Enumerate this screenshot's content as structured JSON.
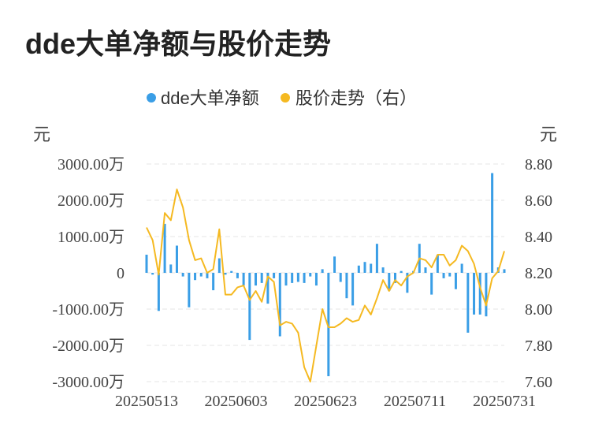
{
  "title": "dde大单净额与股价走势",
  "legend": {
    "bar_label": "dde大单净额",
    "line_label": "股价走势（右）"
  },
  "colors": {
    "bar": "#3a9ee6",
    "line": "#f5b921",
    "title": "#222222"
  },
  "chart_data": {
    "type": "bar",
    "y_left_unit": "元",
    "y_right_unit": "元",
    "y_left_ticks": [
      "3000.00万",
      "2000.00万",
      "1000.00万",
      "0",
      "-1000.00万",
      "-2000.00万",
      "-3000.00万"
    ],
    "y_right_ticks": [
      "8.80",
      "8.60",
      "8.40",
      "8.20",
      "8.00",
      "7.80",
      "7.60"
    ],
    "ylim_left": [
      -3000,
      3000
    ],
    "ylim_right": [
      7.6,
      8.8
    ],
    "x_tick_labels": [
      "20250513",
      "20250603",
      "20250623",
      "20250711",
      "20250731"
    ],
    "grid": true,
    "legend_position": "top-center",
    "series": [
      {
        "name": "dde大单净额",
        "type": "bar",
        "unit": "万元",
        "values": [
          500,
          -50,
          -1050,
          1350,
          230,
          750,
          -100,
          -950,
          -200,
          -100,
          -150,
          -480,
          400,
          -50,
          50,
          -150,
          -350,
          -1850,
          -350,
          -280,
          -850,
          -150,
          -1750,
          -350,
          -280,
          -250,
          -280,
          -100,
          -350,
          100,
          -2850,
          450,
          -250,
          -700,
          -900,
          200,
          300,
          250,
          800,
          150,
          -500,
          -280,
          50,
          -550,
          50,
          800,
          150,
          -600,
          500,
          -150,
          -100,
          -450,
          250,
          -1650,
          -1150,
          -1150,
          -1200,
          2750,
          150,
          100
        ]
      },
      {
        "name": "股价走势（右）",
        "type": "line",
        "unit": "元",
        "values": [
          8.45,
          8.38,
          8.19,
          8.53,
          8.49,
          8.66,
          8.56,
          8.38,
          8.27,
          8.28,
          8.2,
          8.22,
          8.44,
          8.08,
          8.08,
          8.12,
          8.13,
          8.05,
          8.1,
          8.04,
          8.18,
          8.15,
          7.91,
          7.93,
          7.92,
          7.87,
          7.68,
          7.6,
          7.8,
          8.0,
          7.9,
          7.9,
          7.92,
          7.95,
          7.93,
          7.94,
          8.02,
          7.97,
          8.06,
          8.16,
          8.1,
          8.16,
          8.13,
          8.18,
          8.2,
          8.28,
          8.27,
          8.23,
          8.3,
          8.3,
          8.24,
          8.27,
          8.35,
          8.32,
          8.25,
          8.12,
          8.02,
          8.17,
          8.21,
          8.32
        ]
      }
    ]
  }
}
